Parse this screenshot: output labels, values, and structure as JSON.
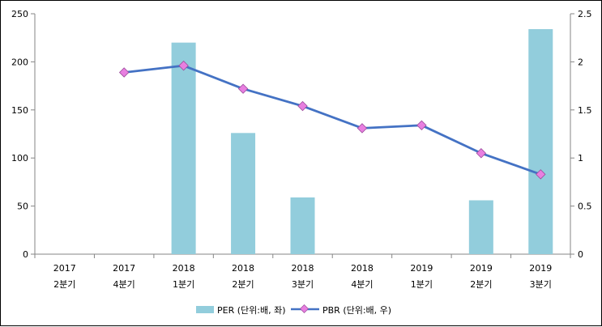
{
  "chart_data": {
    "type": "bar+line",
    "title": "",
    "categories": [
      {
        "year": "2017",
        "quarter": "2분기"
      },
      {
        "year": "2017",
        "quarter": "4분기"
      },
      {
        "year": "2018",
        "quarter": "1분기"
      },
      {
        "year": "2018",
        "quarter": "2분기"
      },
      {
        "year": "2018",
        "quarter": "3분기"
      },
      {
        "year": "2018",
        "quarter": "4분기"
      },
      {
        "year": "2019",
        "quarter": "1분기"
      },
      {
        "year": "2019",
        "quarter": "2분기"
      },
      {
        "year": "2019",
        "quarter": "3분기"
      }
    ],
    "series": [
      {
        "name": "PER (단위:배, 좌)",
        "type": "bar",
        "axis": "left",
        "color": "#92CDDC",
        "values": [
          null,
          null,
          220,
          126,
          59,
          null,
          null,
          56,
          234
        ]
      },
      {
        "name": "PBR (단위:배, 우)",
        "type": "line",
        "axis": "right",
        "color": "#4472C4",
        "marker_color": "#E87FE0",
        "values": [
          null,
          1.89,
          1.96,
          1.72,
          1.54,
          1.31,
          1.34,
          1.05,
          0.83
        ]
      }
    ],
    "y_left": {
      "min": 0,
      "max": 250,
      "ticks": [
        "0",
        "50",
        "100",
        "150",
        "200",
        "250"
      ]
    },
    "y_right": {
      "min": 0,
      "max": 2.5,
      "ticks": [
        "0",
        "0.5",
        "1",
        "1.5",
        "2",
        "2.5"
      ]
    },
    "legend_position": "bottom",
    "grid": false
  }
}
